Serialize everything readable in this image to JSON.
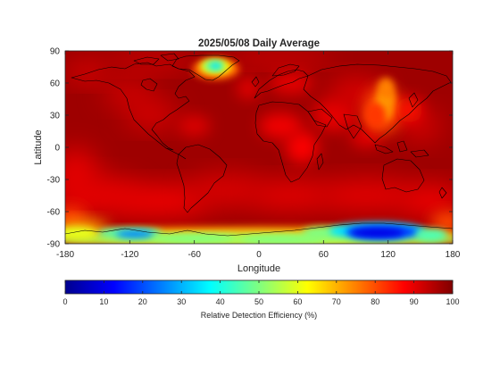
{
  "chart_data": {
    "type": "heatmap",
    "title": "2025/05/08 Daily Average",
    "xlabel": "Longitude",
    "ylabel": "Latitude",
    "xlim": [
      -180,
      180
    ],
    "ylim": [
      -90,
      90
    ],
    "x_ticks": [
      -180,
      -120,
      -60,
      0,
      60,
      120,
      180
    ],
    "y_ticks": [
      90,
      60,
      30,
      0,
      -30,
      -60,
      -90
    ],
    "colormap": "jet",
    "colorbar": {
      "label": "Relative Detection Efficiency (%)",
      "range": [
        0,
        100
      ],
      "ticks": [
        0,
        10,
        20,
        30,
        40,
        50,
        60,
        70,
        80,
        90,
        100
      ],
      "placement": "bottom"
    },
    "background_value": 97,
    "features": [
      {
        "description": "Greenland low-efficiency spot",
        "lon": -40,
        "lat": 75,
        "min_value": 35
      },
      {
        "description": "East Asia moderate zone",
        "lon": 118,
        "lat": 38,
        "min_value": 72
      },
      {
        "description": "Antarctic low-efficiency band",
        "lon": 110,
        "lat": -78,
        "min_value": 8
      }
    ]
  }
}
